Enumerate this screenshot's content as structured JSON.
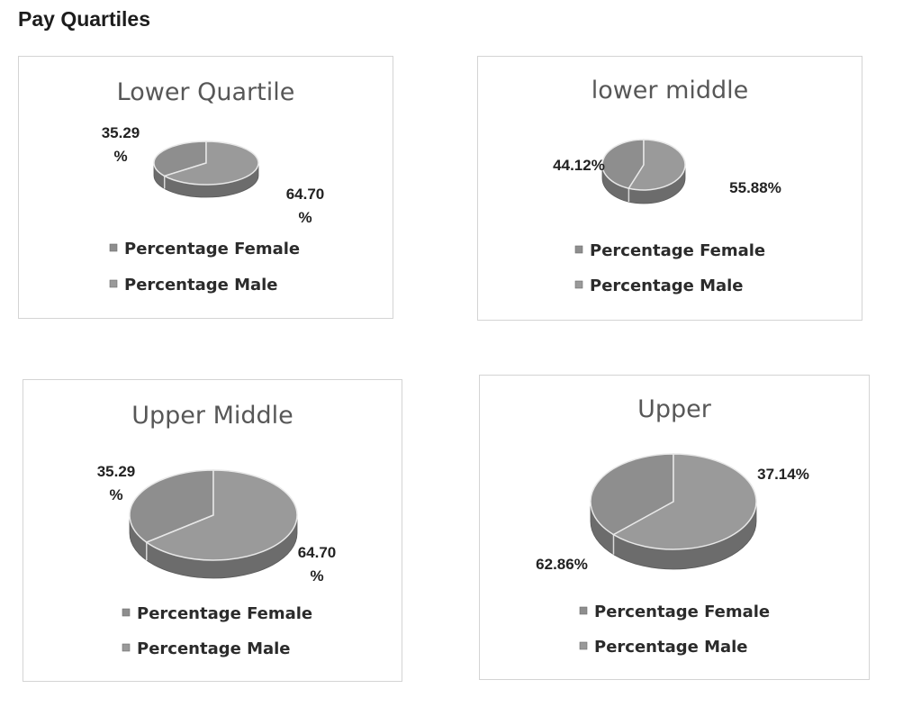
{
  "page": {
    "title": "Pay Quartiles"
  },
  "chart_data": [
    {
      "type": "pie",
      "title": "Lower Quartile",
      "categories": [
        "Percentage Female",
        "Percentage Male"
      ],
      "values": [
        35.29,
        64.7
      ],
      "data_labels": [
        "35.29\n%",
        "64.70\n%"
      ],
      "legend_position": "bottom",
      "colors": [
        "#8e8e8e",
        "#9a9a9a"
      ]
    },
    {
      "type": "pie",
      "title": "lower middle",
      "categories": [
        "Percentage Female",
        "Percentage Male"
      ],
      "values": [
        44.12,
        55.88
      ],
      "data_labels": [
        "44.12%",
        "55.88%"
      ],
      "legend_position": "bottom",
      "colors": [
        "#8e8e8e",
        "#9a9a9a"
      ]
    },
    {
      "type": "pie",
      "title": "Upper Middle",
      "categories": [
        "Percentage Female",
        "Percentage Male"
      ],
      "values": [
        35.29,
        64.7
      ],
      "data_labels": [
        "35.29\n%",
        "64.70\n%"
      ],
      "legend_position": "bottom",
      "colors": [
        "#8e8e8e",
        "#9a9a9a"
      ]
    },
    {
      "type": "pie",
      "title": "Upper",
      "categories": [
        "Percentage Female",
        "Percentage Male"
      ],
      "values": [
        37.14,
        62.86
      ],
      "data_labels": [
        "37.14%",
        "62.86%"
      ],
      "legend_position": "bottom",
      "colors": [
        "#8e8e8e",
        "#9a9a9a"
      ]
    }
  ]
}
